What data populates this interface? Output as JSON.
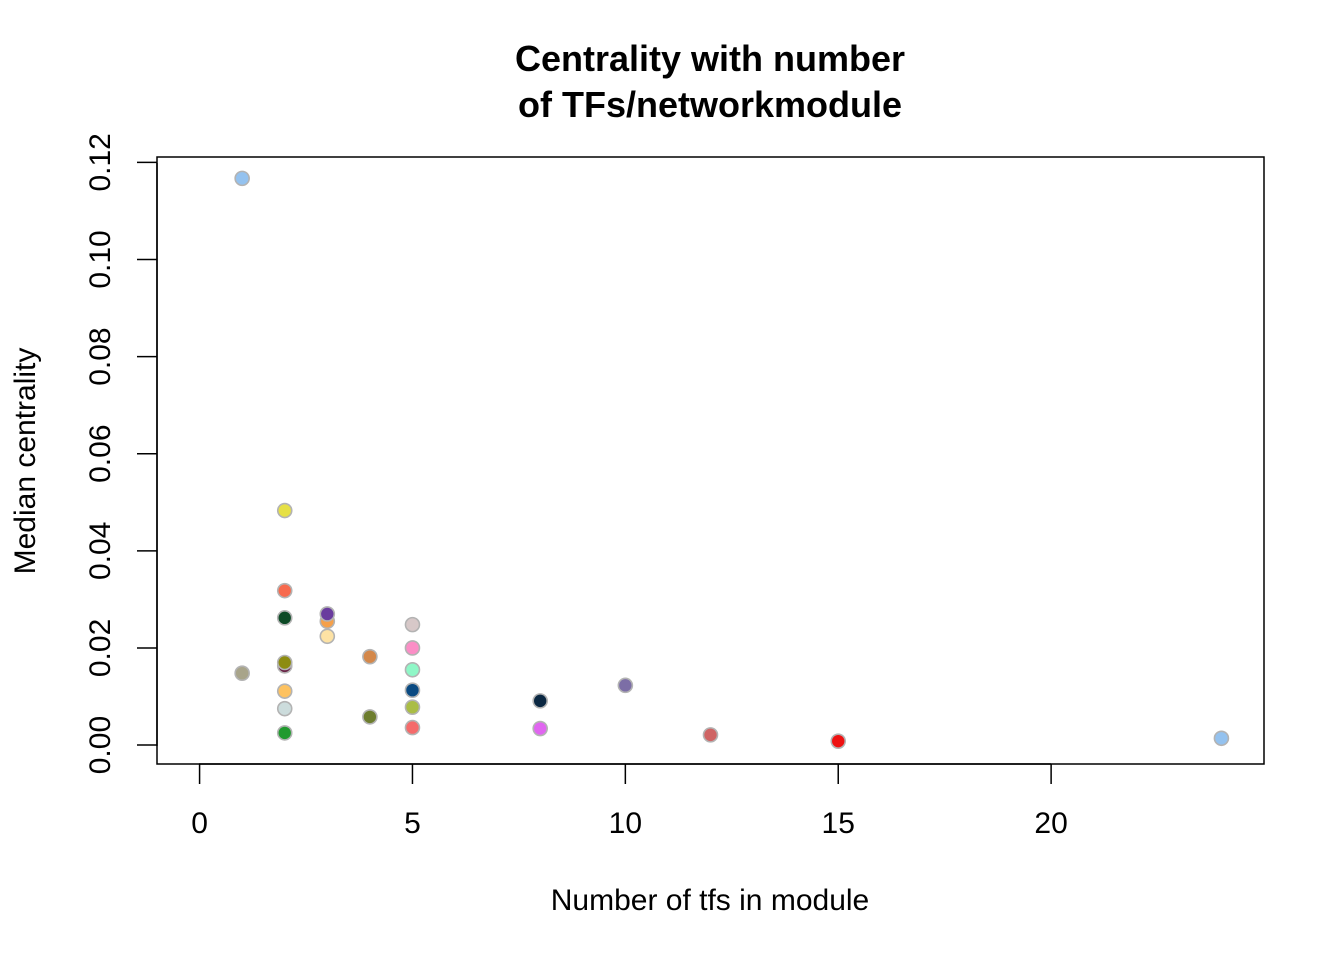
{
  "chart_data": {
    "type": "scatter",
    "title_lines": [
      "Centrality with number",
      "of TFs/networkmodule"
    ],
    "xlabel": "Number of tfs in module",
    "ylabel": "Median centrality",
    "xlim": [
      -1,
      25
    ],
    "ylim": [
      -0.0039,
      0.1211
    ],
    "xticks": [
      0,
      5,
      10,
      15,
      20
    ],
    "xtick_labels": [
      "0",
      "5",
      "10",
      "15",
      "20"
    ],
    "yticks": [
      0,
      0.02,
      0.04,
      0.06,
      0.08,
      0.1,
      0.12
    ],
    "ytick_labels": [
      "0.00",
      "0.02",
      "0.04",
      "0.06",
      "0.08",
      "0.10",
      "0.12"
    ],
    "marker_edge_color": "#b3b3b3",
    "points": [
      {
        "x": 1,
        "y": 0.1167,
        "color": "#94c2ef"
      },
      {
        "x": 1,
        "y": 0.0148,
        "color": "#a8a48a"
      },
      {
        "x": 2,
        "y": 0.0483,
        "color": "#e6e045"
      },
      {
        "x": 2,
        "y": 0.0318,
        "color": "#f76a4e"
      },
      {
        "x": 2,
        "y": 0.0262,
        "color": "#0d4a26"
      },
      {
        "x": 2,
        "y": 0.0163,
        "color": "#6a2447"
      },
      {
        "x": 2,
        "y": 0.017,
        "color": "#8d8c10"
      },
      {
        "x": 2,
        "y": 0.0111,
        "color": "#fdc260"
      },
      {
        "x": 2,
        "y": 0.0075,
        "color": "#ccdcdc"
      },
      {
        "x": 2,
        "y": 0.0025,
        "color": "#219a2f"
      },
      {
        "x": 3,
        "y": 0.0255,
        "color": "#f5a04a"
      },
      {
        "x": 3,
        "y": 0.027,
        "color": "#6a3c9e"
      },
      {
        "x": 3,
        "y": 0.0224,
        "color": "#fde2a4"
      },
      {
        "x": 4,
        "y": 0.0182,
        "color": "#d4884a"
      },
      {
        "x": 4,
        "y": 0.0058,
        "color": "#6d7d2e"
      },
      {
        "x": 5,
        "y": 0.0248,
        "color": "#d7c8c8"
      },
      {
        "x": 5,
        "y": 0.02,
        "color": "#fb8ec6"
      },
      {
        "x": 5,
        "y": 0.0155,
        "color": "#8ff7c7"
      },
      {
        "x": 5,
        "y": 0.0113,
        "color": "#0a4a82"
      },
      {
        "x": 5,
        "y": 0.0078,
        "color": "#aabd45"
      },
      {
        "x": 5,
        "y": 0.0036,
        "color": "#f56b6b"
      },
      {
        "x": 8,
        "y": 0.0091,
        "color": "#0b2842"
      },
      {
        "x": 8,
        "y": 0.0034,
        "color": "#e065f0"
      },
      {
        "x": 10,
        "y": 0.0123,
        "color": "#7c6ea6"
      },
      {
        "x": 12,
        "y": 0.0021,
        "color": "#cf6464"
      },
      {
        "x": 15,
        "y": 0.0008,
        "color": "#ee1111"
      },
      {
        "x": 24,
        "y": 0.0014,
        "color": "#94c2ef"
      }
    ]
  }
}
